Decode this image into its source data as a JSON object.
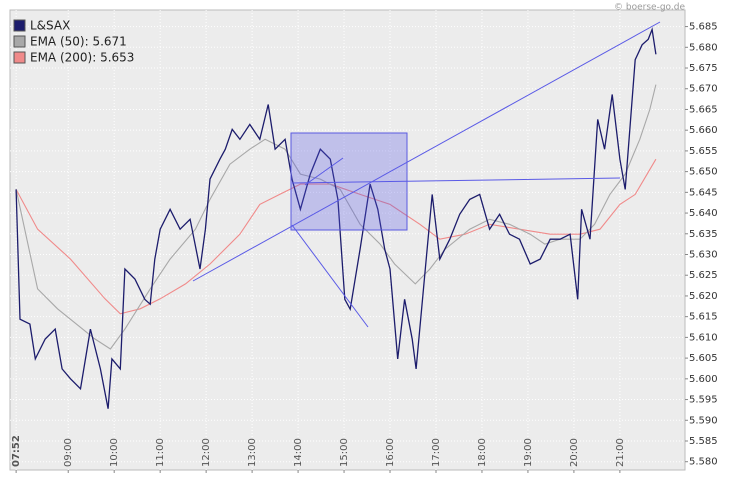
{
  "chart_data": {
    "type": "line",
    "source": "© boerse-go.de",
    "xlim": [
      "07:44",
      "22:25"
    ],
    "xticks": [
      "07:52",
      "09:00",
      "10:00",
      "11:00",
      "12:00",
      "13:00",
      "14:00",
      "15:00",
      "16:00",
      "17:00",
      "18:00",
      "19:00",
      "20:00",
      "21:00"
    ],
    "ylim": [
      5.578,
      5.689
    ],
    "yticks": [
      {
        "value": 5.58,
        "label": "5.580"
      },
      {
        "value": 5.585,
        "label": "5.585"
      },
      {
        "value": 5.59,
        "label": "5.590"
      },
      {
        "value": 5.595,
        "label": "5.595"
      },
      {
        "value": 5.6,
        "label": "5.600"
      },
      {
        "value": 5.605,
        "label": "5.605"
      },
      {
        "value": 5.61,
        "label": "5.610"
      },
      {
        "value": 5.615,
        "label": "5.615"
      },
      {
        "value": 5.62,
        "label": "5.620"
      },
      {
        "value": 5.625,
        "label": "5.625"
      },
      {
        "value": 5.63,
        "label": "5.630"
      },
      {
        "value": 5.635,
        "label": "5.635"
      },
      {
        "value": 5.64,
        "label": "5.640"
      },
      {
        "value": 5.645,
        "label": "5.645"
      },
      {
        "value": 5.65,
        "label": "5.650"
      },
      {
        "value": 5.655,
        "label": "5.655"
      },
      {
        "value": 5.66,
        "label": "5.660"
      },
      {
        "value": 5.665,
        "label": "5.665"
      },
      {
        "value": 5.67,
        "label": "5.670"
      },
      {
        "value": 5.675,
        "label": "5.675"
      },
      {
        "value": 5.68,
        "label": "5.680"
      },
      {
        "value": 5.685,
        "label": "5.685"
      }
    ],
    "grid": true,
    "legend": "top-left",
    "series": [
      {
        "name": "L&SAX",
        "color": "#1c1c6c",
        "x": [
          "07:52",
          "07:57",
          "08:10",
          "08:17",
          "08:30",
          "08:43",
          "08:52",
          "09:03",
          "09:16",
          "09:29",
          "09:42",
          "09:52",
          "09:57",
          "10:08",
          "10:14",
          "10:27",
          "10:40",
          "10:47",
          "10:53",
          "11:00",
          "11:13",
          "11:26",
          "11:39",
          "11:52",
          "11:59",
          "12:05",
          "12:18",
          "12:25",
          "12:34",
          "12:44",
          "12:57",
          "13:10",
          "13:21",
          "13:30",
          "13:43",
          "13:52",
          "14:03",
          "14:16",
          "14:29",
          "14:42",
          "14:52",
          "15:01",
          "15:08",
          "15:21",
          "15:34",
          "15:44",
          "15:53",
          "16:00",
          "16:10",
          "16:19",
          "16:29",
          "16:34",
          "16:46",
          "16:55",
          "17:05",
          "17:18",
          "17:31",
          "17:44",
          "17:57",
          "18:10",
          "18:23",
          "18:36",
          "18:49",
          "19:03",
          "19:16",
          "19:29",
          "19:42",
          "19:55",
          "20:05",
          "20:10",
          "20:21",
          "20:31",
          "20:40",
          "20:50",
          "21:00",
          "21:07",
          "21:20",
          "21:29",
          "21:37",
          "21:42",
          "21:47"
        ],
        "values": [
          5.6457,
          5.6144,
          5.6132,
          5.6048,
          5.6096,
          5.612,
          5.6024,
          5.6,
          5.5976,
          5.612,
          5.6024,
          5.5928,
          5.6048,
          5.6024,
          5.6265,
          5.6241,
          5.6192,
          5.618,
          5.6289,
          5.6361,
          5.6409,
          5.6361,
          5.6385,
          5.6265,
          5.6361,
          5.6482,
          5.653,
          5.6554,
          5.6602,
          5.6578,
          5.6614,
          5.6578,
          5.6662,
          5.6554,
          5.6578,
          5.6482,
          5.6409,
          5.6494,
          5.6554,
          5.653,
          5.6433,
          5.6192,
          5.6168,
          5.6313,
          5.647,
          5.6409,
          5.6313,
          5.6265,
          5.6048,
          5.6192,
          5.6096,
          5.6024,
          5.6265,
          5.6445,
          5.6289,
          5.6337,
          5.6397,
          5.6433,
          5.6445,
          5.6361,
          5.6397,
          5.6349,
          5.6337,
          5.6277,
          5.6289,
          5.6337,
          5.6337,
          5.6349,
          5.6192,
          5.6409,
          5.6337,
          5.6626,
          5.6554,
          5.6686,
          5.653,
          5.6457,
          5.677,
          5.6806,
          5.6819,
          5.6843,
          5.6783
        ]
      },
      {
        "name": "EMA (50): 5.671",
        "color": "#a8a8a8",
        "x": [
          "07:52",
          "08:20",
          "08:46",
          "09:35",
          "09:55",
          "10:14",
          "10:47",
          "11:13",
          "11:46",
          "12:05",
          "12:31",
          "12:57",
          "13:17",
          "13:43",
          "14:03",
          "14:29",
          "14:55",
          "15:21",
          "15:47",
          "16:06",
          "16:33",
          "16:52",
          "17:12",
          "17:44",
          "18:10",
          "18:36",
          "19:03",
          "19:22",
          "19:42",
          "20:08",
          "20:27",
          "20:47",
          "21:07",
          "21:26",
          "21:39",
          "21:47"
        ],
        "values": [
          5.6457,
          5.6217,
          5.6169,
          5.6096,
          5.6072,
          5.612,
          5.6217,
          5.6289,
          5.6361,
          5.6433,
          5.6518,
          5.6554,
          5.6578,
          5.6554,
          5.6494,
          5.6482,
          5.6457,
          5.6373,
          5.6325,
          5.6277,
          5.6229,
          5.6265,
          5.6313,
          5.6361,
          5.6385,
          5.6373,
          5.6349,
          5.6325,
          5.6337,
          5.6337,
          5.6373,
          5.6445,
          5.6494,
          5.6578,
          5.665,
          5.671
        ]
      },
      {
        "name": "EMA (200): 5.653",
        "color": "#f08a8a",
        "x": [
          "07:52",
          "08:20",
          "09:03",
          "09:48",
          "10:08",
          "10:34",
          "11:00",
          "11:33",
          "12:05",
          "12:44",
          "13:10",
          "13:36",
          "14:03",
          "14:42",
          "15:21",
          "16:00",
          "16:39",
          "17:05",
          "17:38",
          "18:10",
          "18:49",
          "19:29",
          "20:08",
          "20:34",
          "21:00",
          "21:20",
          "21:47"
        ],
        "values": [
          5.6457,
          5.6361,
          5.6289,
          5.6193,
          5.6157,
          5.6169,
          5.6193,
          5.6229,
          5.6277,
          5.6349,
          5.6421,
          5.6445,
          5.647,
          5.647,
          5.6445,
          5.6421,
          5.6373,
          5.6337,
          5.6349,
          5.6373,
          5.6361,
          5.6349,
          5.6349,
          5.6361,
          5.6421,
          5.6445,
          5.653
        ]
      }
    ]
  }
}
